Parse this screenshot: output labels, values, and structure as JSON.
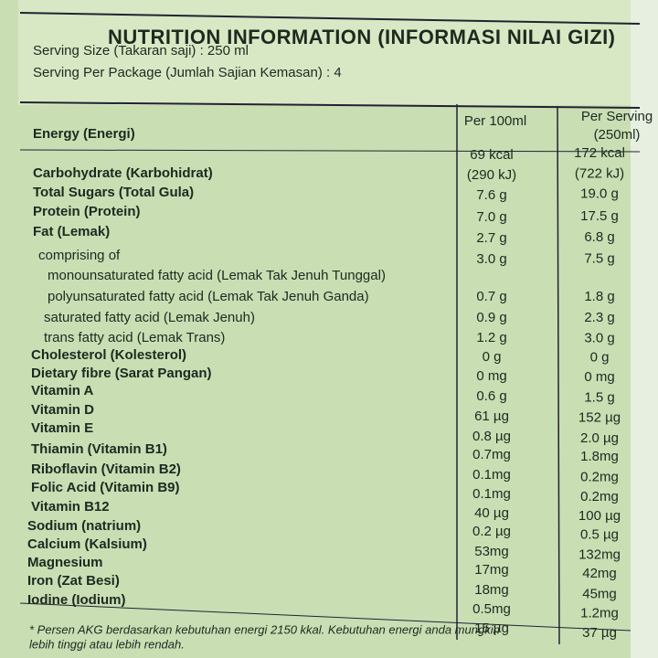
{
  "header": {
    "title": "NUTRITION INFORMATION (INFORMASI NILAI GIZI)",
    "serving_size": "Serving Size (Takaran saji) : 250 ml",
    "serving_per_package": "Serving Per Package (Jumlah Sajian Kemasan) : 4"
  },
  "table": {
    "columns": [
      "Per 100ml",
      "Per Serving",
      "(250ml)"
    ],
    "nutrients": [
      "Energy (Energi)",
      "Carbohydrate (Karbohidrat)",
      "Total Sugars (Total Gula)",
      "Protein (Protein)",
      "Fat (Lemak)",
      "comprising of",
      "monounsaturated fatty acid (Lemak Tak Jenuh Tunggal)",
      "polyunsaturated fatty acid (Lemak Tak Jenuh Ganda)",
      "saturated fatty acid (Lemak Jenuh)",
      "trans fatty acid (Lemak Trans)",
      "Cholesterol (Kolesterol)",
      "Dietary fibre (Sarat Pangan)",
      "Vitamin A",
      "Vitamin D",
      "Vitamin E",
      "Thiamin (Vitamin B1)",
      "Riboflavin (Vitamin B2)",
      "Folic Acid  (Vitamin B9)",
      "Vitamin B12",
      "Sodium (natrium)",
      "Calcium (Kalsium)",
      "Magnesium",
      "Iron (Zat Besi)",
      "Iodine (Iodium)"
    ],
    "per_100ml": [
      "69 kcal",
      "(290 kJ)",
      "7.6  g",
      "7.0  g",
      "2.7  g",
      "3.0  g",
      "0.7  g",
      "0.9  g",
      "1.2  g",
      "0  g",
      "0 mg",
      "0.6  g",
      "61 µg",
      "0.8 µg",
      "0.7mg",
      "0.1mg",
      "0.1mg",
      "40 µg",
      "0.2 µg",
      "53mg",
      "17mg",
      "18mg",
      "0.5mg",
      "15 µg"
    ],
    "per_serving": [
      "172 kcal",
      "(722 kJ)",
      "19.0  g",
      "17.5  g",
      "6.8  g",
      "7.5  g",
      "1.8  g",
      "2.3  g",
      "3.0  g",
      "0  g",
      "0 mg",
      "1.5  g",
      "152 µg",
      "2.0 µg",
      "1.8mg",
      "0.2mg",
      "0.2mg",
      "100 µg",
      "0.5 µg",
      "132mg",
      "42mg",
      "45mg",
      "1.2mg",
      "37 µg"
    ]
  },
  "footnote": [
    "* Persen AKG berdasarkan kebutuhan energi 2150 kkal. Kebutuhan energi anda mungkin",
    "lebih tinggi atau lebih rendah."
  ]
}
